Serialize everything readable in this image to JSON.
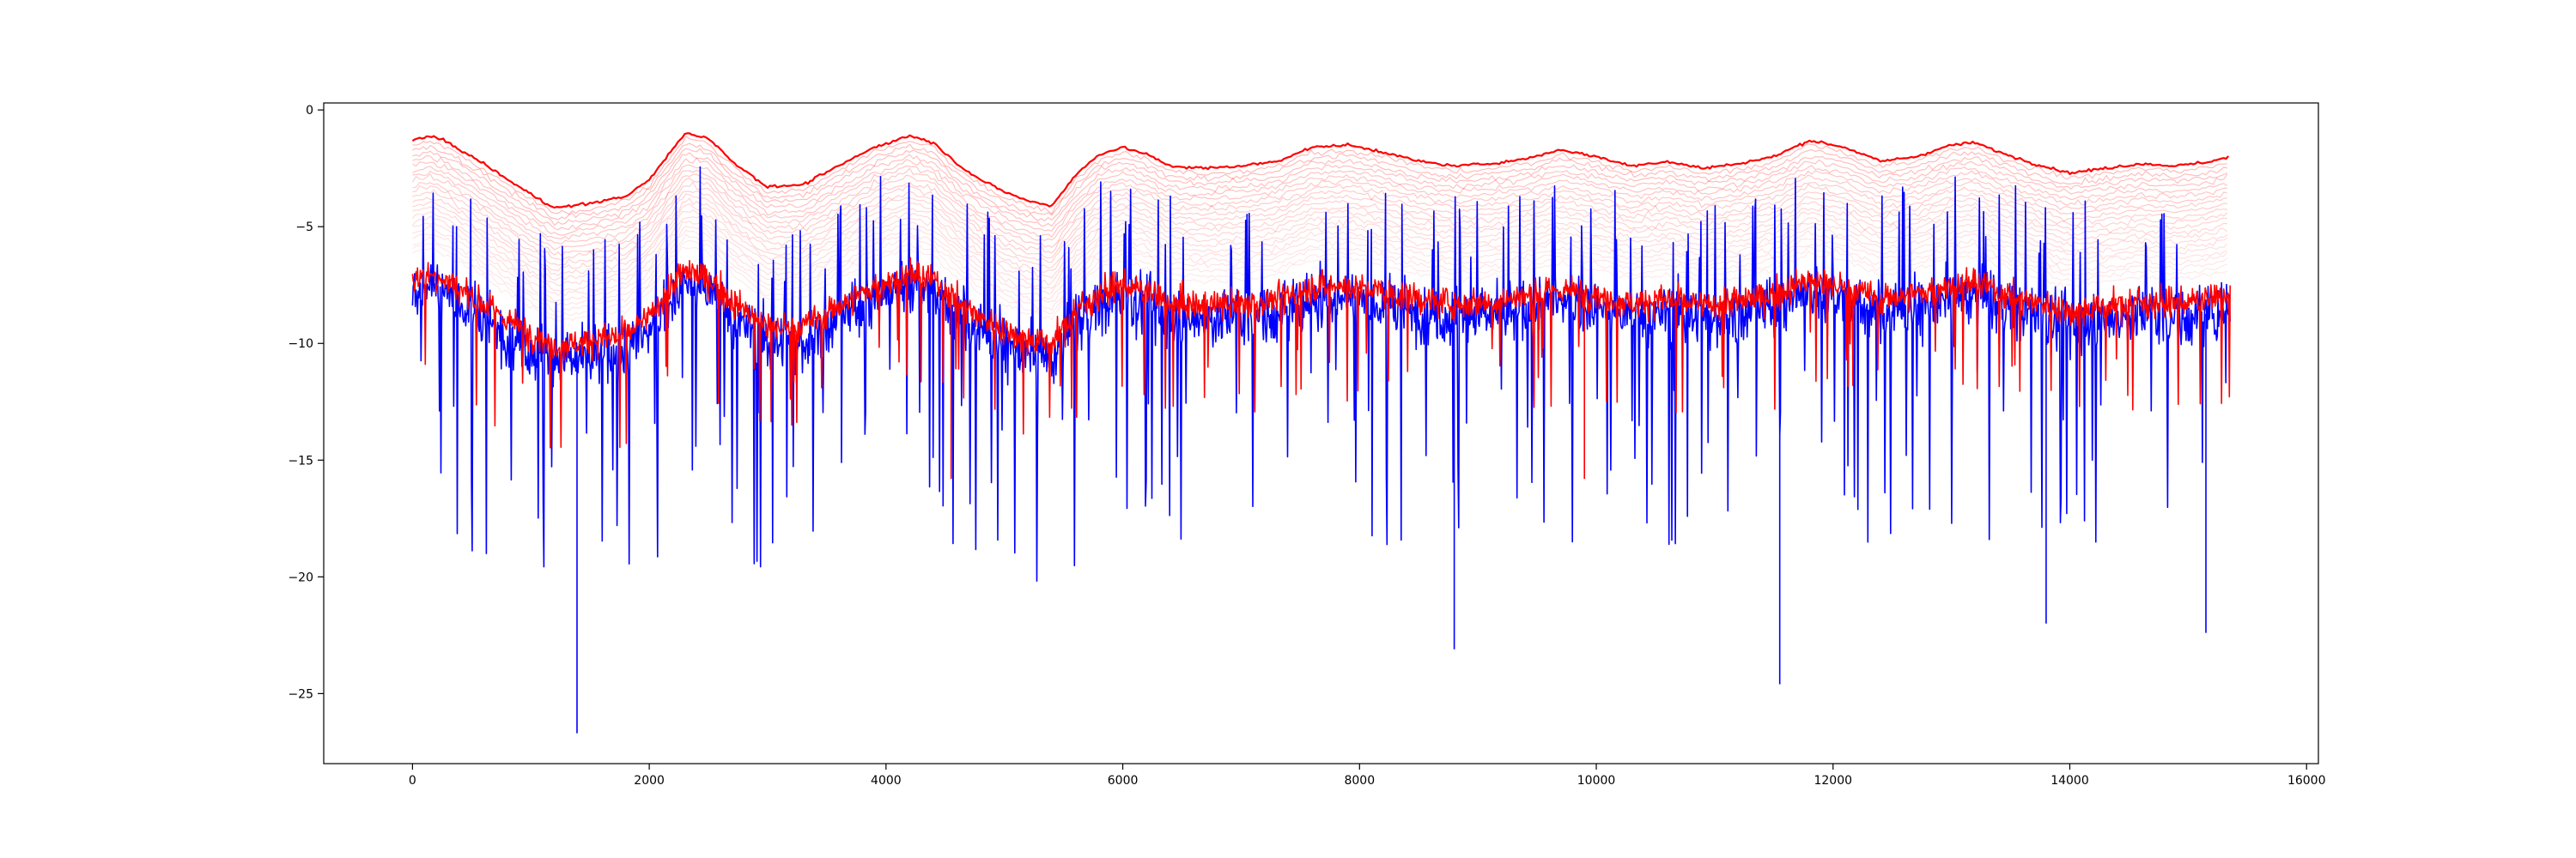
{
  "chart_data": {
    "type": "line",
    "title": "",
    "xlabel": "",
    "ylabel": "",
    "xlim": [
      -750,
      16100
    ],
    "ylim": [
      -28,
      0.3
    ],
    "x_ticks": [
      0,
      2000,
      4000,
      6000,
      8000,
      10000,
      12000,
      14000,
      16000
    ],
    "x_tick_labels": [
      "0",
      "2000",
      "4000",
      "6000",
      "8000",
      "10000",
      "12000",
      "14000",
      "16000"
    ],
    "y_ticks": [
      0,
      -5,
      -10,
      -15,
      -20,
      -25
    ],
    "y_tick_labels": [
      "0",
      "−5",
      "−10",
      "−15",
      "−20",
      "−25"
    ],
    "grid": false,
    "legend": "none",
    "n_points": 15360,
    "colors": {
      "blue_series": "#0000ff",
      "red_series": "#ff0000",
      "faded_red_bands": "#ff0000"
    },
    "series": [
      {
        "role": "upper envelope (solid red line)",
        "color": "#ff0000",
        "x": [
          0,
          150,
          300,
          600,
          900,
          1200,
          1500,
          1800,
          2000,
          2150,
          2300,
          2500,
          2700,
          3000,
          3300,
          3600,
          3900,
          4200,
          4400,
          4600,
          4800,
          5000,
          5200,
          5400,
          5600,
          5800,
          6000,
          6200,
          6400,
          6700,
          7000,
          7300,
          7600,
          7900,
          8200,
          8500,
          8800,
          9100,
          9400,
          9700,
          10000,
          10300,
          10600,
          10900,
          11200,
          11500,
          11800,
          12100,
          12400,
          12700,
          13000,
          13200,
          13400,
          13700,
          14000,
          14300,
          14600,
          14900,
          15200,
          15350
        ],
        "y": [
          -1.3,
          -1.1,
          -1.4,
          -2.3,
          -3.3,
          -4.2,
          -4.0,
          -3.7,
          -3.0,
          -2.0,
          -1.0,
          -1.2,
          -2.2,
          -3.3,
          -3.2,
          -2.4,
          -1.6,
          -1.1,
          -1.4,
          -2.3,
          -3.0,
          -3.5,
          -3.9,
          -4.1,
          -2.8,
          -1.9,
          -1.6,
          -1.9,
          -2.4,
          -2.5,
          -2.4,
          -2.2,
          -1.6,
          -1.5,
          -1.8,
          -2.2,
          -2.4,
          -2.3,
          -2.1,
          -1.7,
          -2.0,
          -2.4,
          -2.2,
          -2.5,
          -2.3,
          -2.0,
          -1.3,
          -1.6,
          -2.2,
          -2.0,
          -1.5,
          -1.4,
          -1.8,
          -2.3,
          -2.7,
          -2.5,
          -2.3,
          -2.4,
          -2.2,
          -2.0
        ]
      },
      {
        "role": "blue series (trend of dense signal)",
        "color": "#0000ff",
        "x": [
          0,
          150,
          300,
          600,
          900,
          1200,
          1500,
          1800,
          2000,
          2150,
          2300,
          2500,
          2700,
          3000,
          3300,
          3600,
          3900,
          4200,
          4400,
          4600,
          4800,
          5000,
          5200,
          5400,
          5600,
          5800,
          6000,
          6200,
          6400,
          6700,
          7000,
          7300,
          7600,
          7900,
          8200,
          8500,
          8800,
          9100,
          9400,
          9700,
          10000,
          10300,
          10600,
          10900,
          11200,
          11500,
          11800,
          12100,
          12400,
          12700,
          13000,
          13200,
          13400,
          13700,
          14000,
          14300,
          14600,
          14900,
          15200,
          15350
        ],
        "y": [
          -7.8,
          -7.5,
          -7.8,
          -9.0,
          -10.0,
          -10.8,
          -10.6,
          -10.3,
          -9.5,
          -8.3,
          -7.5,
          -7.8,
          -8.8,
          -10.0,
          -10.0,
          -9.0,
          -8.1,
          -7.5,
          -7.8,
          -8.7,
          -9.5,
          -10.0,
          -10.4,
          -10.6,
          -9.2,
          -8.4,
          -8.0,
          -8.4,
          -8.9,
          -9.0,
          -8.9,
          -8.7,
          -8.1,
          -8.0,
          -8.3,
          -8.7,
          -8.9,
          -8.8,
          -8.6,
          -8.2,
          -8.5,
          -8.9,
          -8.7,
          -9.0,
          -8.8,
          -8.5,
          -7.8,
          -8.1,
          -8.7,
          -8.5,
          -8.0,
          -7.9,
          -8.3,
          -8.8,
          -9.2,
          -9.0,
          -8.8,
          -8.9,
          -8.7,
          -8.5
        ]
      },
      {
        "role": "red series (trend of dense signal)",
        "color": "#ff0000",
        "x": [
          0,
          150,
          300,
          600,
          900,
          1200,
          1500,
          1800,
          2000,
          2150,
          2300,
          2500,
          2700,
          3000,
          3300,
          3600,
          3900,
          4200,
          4400,
          4600,
          4800,
          5000,
          5200,
          5400,
          5600,
          5800,
          6000,
          6200,
          6400,
          6700,
          7000,
          7300,
          7600,
          7900,
          8200,
          8500,
          8800,
          9100,
          9400,
          9700,
          10000,
          10300,
          10600,
          10900,
          11200,
          11500,
          11800,
          12100,
          12400,
          12700,
          13000,
          13200,
          13400,
          13700,
          14000,
          14300,
          14600,
          14900,
          15200,
          15350
        ],
        "y": [
          -7.3,
          -7.0,
          -7.3,
          -8.3,
          -9.3,
          -10.1,
          -9.9,
          -9.6,
          -8.9,
          -7.8,
          -6.9,
          -7.2,
          -8.2,
          -9.3,
          -9.3,
          -8.4,
          -7.6,
          -7.0,
          -7.3,
          -8.1,
          -8.9,
          -9.4,
          -9.8,
          -10.0,
          -8.6,
          -7.9,
          -7.5,
          -7.8,
          -8.3,
          -8.4,
          -8.3,
          -8.1,
          -7.6,
          -7.5,
          -7.8,
          -8.1,
          -8.3,
          -8.2,
          -8.0,
          -7.7,
          -7.9,
          -8.3,
          -8.1,
          -8.4,
          -8.2,
          -7.9,
          -7.3,
          -7.6,
          -8.1,
          -7.9,
          -7.5,
          -7.4,
          -7.8,
          -8.2,
          -8.6,
          -8.4,
          -8.2,
          -8.3,
          -8.1,
          -7.9
        ]
      }
    ],
    "annotations": [
      {
        "series": "blue",
        "x": 1390,
        "y": -26.7
      },
      {
        "series": "blue",
        "x": 11550,
        "y": -24.6
      },
      {
        "series": "blue",
        "x": 8800,
        "y": -23.1
      },
      {
        "series": "blue",
        "x": 15150,
        "y": -22.4
      },
      {
        "series": "blue",
        "x": 13800,
        "y": -22.0
      },
      {
        "series": "red",
        "x": 4550,
        "y": -15.8
      },
      {
        "series": "red",
        "x": 9900,
        "y": -15.8
      }
    ]
  }
}
